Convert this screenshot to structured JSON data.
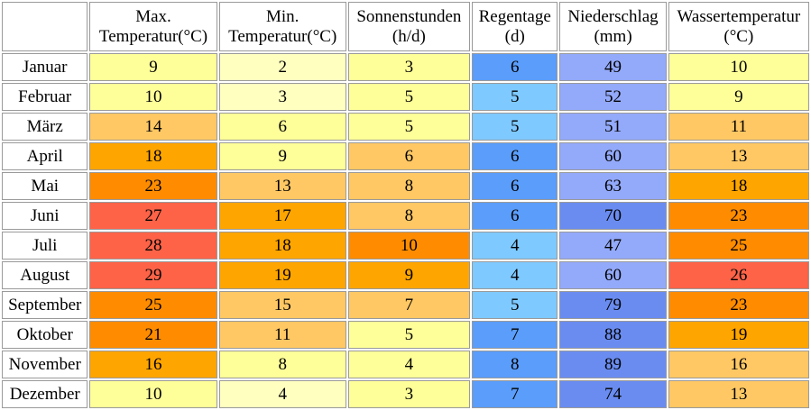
{
  "headers": [
    {
      "line1": "Max.",
      "line2": "Temperatur(°C)"
    },
    {
      "line1": "Min.",
      "line2": "Temperatur(°C)"
    },
    {
      "line1": "Sonnenstunden",
      "line2": "(h/d)"
    },
    {
      "line1": "Regentage",
      "line2": "(d)"
    },
    {
      "line1": "Niederschlag",
      "line2": "(mm)"
    },
    {
      "line1": "Wassertemperatur",
      "line2": "(°C)"
    }
  ],
  "rows": [
    {
      "month": "Januar",
      "max": "9",
      "min": "2",
      "sun": "3",
      "rain_days": "6",
      "precip": "49",
      "water": "10"
    },
    {
      "month": "Februar",
      "max": "10",
      "min": "3",
      "sun": "5",
      "rain_days": "5",
      "precip": "52",
      "water": "9"
    },
    {
      "month": "März",
      "max": "14",
      "min": "6",
      "sun": "5",
      "rain_days": "5",
      "precip": "51",
      "water": "11"
    },
    {
      "month": "April",
      "max": "18",
      "min": "9",
      "sun": "6",
      "rain_days": "6",
      "precip": "60",
      "water": "13"
    },
    {
      "month": "Mai",
      "max": "23",
      "min": "13",
      "sun": "8",
      "rain_days": "6",
      "precip": "63",
      "water": "18"
    },
    {
      "month": "Juni",
      "max": "27",
      "min": "17",
      "sun": "8",
      "rain_days": "6",
      "precip": "70",
      "water": "23"
    },
    {
      "month": "Juli",
      "max": "28",
      "min": "18",
      "sun": "10",
      "rain_days": "4",
      "precip": "47",
      "water": "25"
    },
    {
      "month": "August",
      "max": "29",
      "min": "19",
      "sun": "9",
      "rain_days": "4",
      "precip": "60",
      "water": "26"
    },
    {
      "month": "September",
      "max": "25",
      "min": "15",
      "sun": "7",
      "rain_days": "5",
      "precip": "79",
      "water": "23"
    },
    {
      "month": "Oktober",
      "max": "21",
      "min": "11",
      "sun": "5",
      "rain_days": "7",
      "precip": "88",
      "water": "19"
    },
    {
      "month": "November",
      "max": "16",
      "min": "8",
      "sun": "4",
      "rain_days": "8",
      "precip": "89",
      "water": "16"
    },
    {
      "month": "Dezember",
      "max": "10",
      "min": "4",
      "sun": "3",
      "rain_days": "7",
      "precip": "74",
      "water": "13"
    }
  ],
  "colors": {
    "Januar": {
      "max": "#ffff99",
      "min": "#ffffc0",
      "sun": "#ffff99",
      "rain_days": "#5a9dfa",
      "precip": "#93a9fa",
      "water": "#ffff99"
    },
    "Februar": {
      "max": "#ffff99",
      "min": "#ffffc0",
      "sun": "#ffff99",
      "rain_days": "#7ec9ff",
      "precip": "#93a9fa",
      "water": "#ffff99"
    },
    "März": {
      "max": "#ffc864",
      "min": "#ffff99",
      "sun": "#ffff99",
      "rain_days": "#7ec9ff",
      "precip": "#93a9fa",
      "water": "#ffc864"
    },
    "April": {
      "max": "#ffa500",
      "min": "#ffff99",
      "sun": "#ffc864",
      "rain_days": "#5a9dfa",
      "precip": "#93a9fa",
      "water": "#ffc864"
    },
    "Mai": {
      "max": "#ff8c00",
      "min": "#ffc864",
      "sun": "#ffc864",
      "rain_days": "#5a9dfa",
      "precip": "#93a9fa",
      "water": "#ffa500"
    },
    "Juni": {
      "max": "#ff6347",
      "min": "#ffa500",
      "sun": "#ffc864",
      "rain_days": "#5a9dfa",
      "precip": "#6a8cf0",
      "water": "#ff8c00"
    },
    "Juli": {
      "max": "#ff6347",
      "min": "#ffa500",
      "sun": "#ff8c00",
      "rain_days": "#7ec9ff",
      "precip": "#93a9fa",
      "water": "#ff8c00"
    },
    "August": {
      "max": "#ff6347",
      "min": "#ffa500",
      "sun": "#ffa500",
      "rain_days": "#7ec9ff",
      "precip": "#93a9fa",
      "water": "#ff6347"
    },
    "September": {
      "max": "#ff8c00",
      "min": "#ffc864",
      "sun": "#ffc864",
      "rain_days": "#7ec9ff",
      "precip": "#6a8cf0",
      "water": "#ff8c00"
    },
    "Oktober": {
      "max": "#ff8c00",
      "min": "#ffc864",
      "sun": "#ffff99",
      "rain_days": "#5a9dfa",
      "precip": "#6a8cf0",
      "water": "#ffa500"
    },
    "November": {
      "max": "#ffa500",
      "min": "#ffff99",
      "sun": "#ffff99",
      "rain_days": "#5a9dfa",
      "precip": "#6a8cf0",
      "water": "#ffc864"
    },
    "Dezember": {
      "max": "#ffff99",
      "min": "#ffffc0",
      "sun": "#ffff99",
      "rain_days": "#5a9dfa",
      "precip": "#6a8cf0",
      "water": "#ffc864"
    }
  }
}
